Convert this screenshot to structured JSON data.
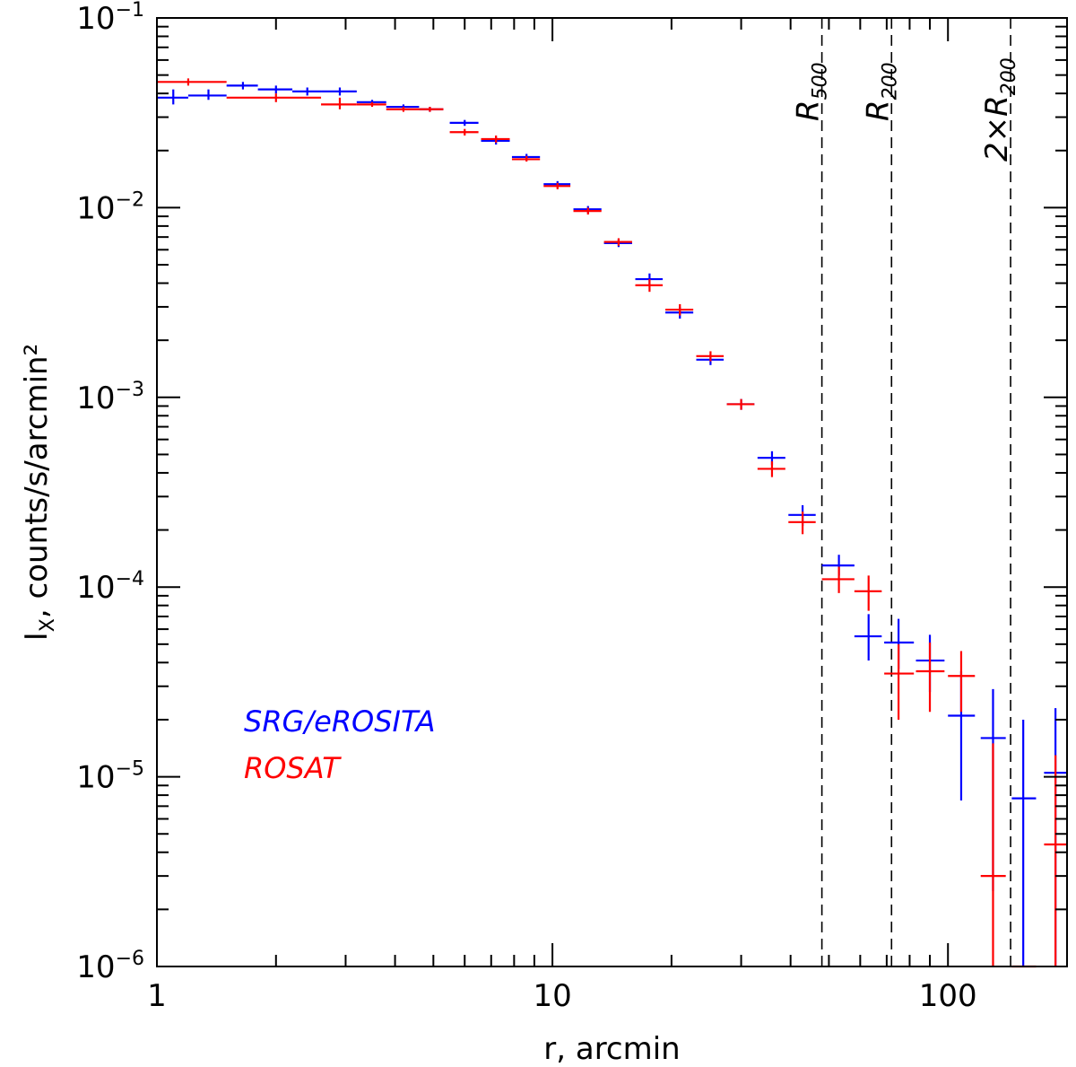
{
  "chart_data": {
    "type": "scatter",
    "xscale": "log",
    "yscale": "log",
    "xlim": [
      1,
      200
    ],
    "ylim": [
      1e-06,
      0.1
    ],
    "xlabel": "r, arcmin",
    "ylabel_main": "I",
    "ylabel_sub": "X",
    "ylabel_rest": ",  counts/s/arcmin²",
    "x_ticks": [
      {
        "value": 1,
        "label": "1"
      },
      {
        "value": 10,
        "label": "10"
      },
      {
        "value": 100,
        "label": "100"
      }
    ],
    "y_ticks": [
      {
        "value": 0.1,
        "base": "10",
        "exp": "−1"
      },
      {
        "value": 0.01,
        "base": "10",
        "exp": "−2"
      },
      {
        "value": 0.001,
        "base": "10",
        "exp": "−3"
      },
      {
        "value": 0.0001,
        "base": "10",
        "exp": "−4"
      },
      {
        "value": 1e-05,
        "base": "10",
        "exp": "−5"
      },
      {
        "value": 1e-06,
        "base": "10",
        "exp": "−6"
      }
    ],
    "ref_lines": [
      {
        "x": 48,
        "main": "R",
        "sub": "500"
      },
      {
        "x": 72,
        "main": "R",
        "sub": "200"
      },
      {
        "x": 144,
        "main": "2×R",
        "sub": "200"
      }
    ],
    "series": [
      {
        "name": "SRG/eROSITA",
        "color": "#0000ff",
        "points": [
          {
            "x": 1.1,
            "xlo": 1.0,
            "xhi": 1.2,
            "y": 0.038,
            "ylo": 0.035,
            "yhi": 0.042
          },
          {
            "x": 1.35,
            "xlo": 1.2,
            "xhi": 1.5,
            "y": 0.039,
            "ylo": 0.037,
            "yhi": 0.042
          },
          {
            "x": 1.65,
            "xlo": 1.5,
            "xhi": 1.8,
            "y": 0.044,
            "ylo": 0.042,
            "yhi": 0.046
          },
          {
            "x": 2.0,
            "xlo": 1.8,
            "xhi": 2.2,
            "y": 0.042,
            "ylo": 0.04,
            "yhi": 0.044
          },
          {
            "x": 2.4,
            "xlo": 2.2,
            "xhi": 2.6,
            "y": 0.041,
            "ylo": 0.039,
            "yhi": 0.043
          },
          {
            "x": 2.9,
            "xlo": 2.6,
            "xhi": 3.2,
            "y": 0.041,
            "ylo": 0.039,
            "yhi": 0.043
          },
          {
            "x": 3.5,
            "xlo": 3.2,
            "xhi": 3.8,
            "y": 0.036,
            "ylo": 0.035,
            "yhi": 0.037
          },
          {
            "x": 4.2,
            "xlo": 3.8,
            "xhi": 4.6,
            "y": 0.034,
            "ylo": 0.033,
            "yhi": 0.035
          },
          {
            "x": 4.9,
            "xlo": 4.6,
            "xhi": 5.3,
            "y": 0.033,
            "ylo": 0.032,
            "yhi": 0.034
          },
          {
            "x": 6.0,
            "xlo": 5.5,
            "xhi": 6.5,
            "y": 0.028,
            "ylo": 0.027,
            "yhi": 0.029
          },
          {
            "x": 7.2,
            "xlo": 6.6,
            "xhi": 7.8,
            "y": 0.0225,
            "ylo": 0.0215,
            "yhi": 0.0235
          },
          {
            "x": 8.6,
            "xlo": 7.9,
            "xhi": 9.3,
            "y": 0.0185,
            "ylo": 0.0178,
            "yhi": 0.0192
          },
          {
            "x": 10.3,
            "xlo": 9.5,
            "xhi": 11.1,
            "y": 0.0133,
            "ylo": 0.0128,
            "yhi": 0.0138
          },
          {
            "x": 12.3,
            "xlo": 11.3,
            "xhi": 13.3,
            "y": 0.0098,
            "ylo": 0.0094,
            "yhi": 0.0102
          },
          {
            "x": 14.7,
            "xlo": 13.5,
            "xhi": 15.9,
            "y": 0.0065,
            "ylo": 0.0062,
            "yhi": 0.0068
          },
          {
            "x": 17.6,
            "xlo": 16.2,
            "xhi": 19.0,
            "y": 0.0042,
            "ylo": 0.0039,
            "yhi": 0.0045
          },
          {
            "x": 21.0,
            "xlo": 19.3,
            "xhi": 22.7,
            "y": 0.0028,
            "ylo": 0.0026,
            "yhi": 0.003
          },
          {
            "x": 25.1,
            "xlo": 23.1,
            "xhi": 27.1,
            "y": 0.00158,
            "ylo": 0.00148,
            "yhi": 0.00168
          },
          {
            "x": 30.0,
            "xlo": 27.6,
            "xhi": 32.4,
            "y": 0.00092,
            "ylo": 0.00086,
            "yhi": 0.00098
          },
          {
            "x": 35.9,
            "xlo": 33.0,
            "xhi": 38.8,
            "y": 0.00048,
            "ylo": 0.00044,
            "yhi": 0.00052
          },
          {
            "x": 42.9,
            "xlo": 39.5,
            "xhi": 46.3,
            "y": 0.00024,
            "ylo": 0.00021,
            "yhi": 0.00027
          },
          {
            "x": 53.0,
            "xlo": 48.0,
            "xhi": 58.0,
            "y": 0.00013,
            "ylo": 0.000115,
            "yhi": 0.000148
          },
          {
            "x": 63.0,
            "xlo": 58.0,
            "xhi": 68.0,
            "y": 5.5e-05,
            "ylo": 4.1e-05,
            "yhi": 7.2e-05
          },
          {
            "x": 75.0,
            "xlo": 69.0,
            "xhi": 82.0,
            "y": 5.1e-05,
            "ylo": 3.7e-05,
            "yhi": 6.8e-05
          },
          {
            "x": 90.0,
            "xlo": 83.0,
            "xhi": 98.0,
            "y": 4.1e-05,
            "ylo": 2.8e-05,
            "yhi": 5.6e-05
          },
          {
            "x": 108.0,
            "xlo": 100.0,
            "xhi": 117.0,
            "y": 2.1e-05,
            "ylo": 7.5e-06,
            "yhi": 3.6e-05
          },
          {
            "x": 130.0,
            "xlo": 121.0,
            "xhi": 140.0,
            "y": 1.6e-05,
            "ylo": 2.5e-06,
            "yhi": 2.9e-05
          },
          {
            "x": 155.0,
            "xlo": 145.0,
            "xhi": 167.0,
            "y": 7.7e-06,
            "ylo": 1e-06,
            "yhi": 2e-05
          },
          {
            "x": 187.0,
            "xlo": 175.0,
            "xhi": 200.0,
            "y": 1.05e-05,
            "ylo": 1e-06,
            "yhi": 2.3e-05
          }
        ]
      },
      {
        "name": "ROSAT",
        "color": "#ff0000",
        "points": [
          {
            "x": 1.2,
            "xlo": 1.0,
            "xhi": 1.5,
            "y": 0.046,
            "ylo": 0.044,
            "yhi": 0.048
          },
          {
            "x": 2.0,
            "xlo": 1.5,
            "xhi": 2.6,
            "y": 0.038,
            "ylo": 0.036,
            "yhi": 0.04
          },
          {
            "x": 2.9,
            "xlo": 2.6,
            "xhi": 3.2,
            "y": 0.035,
            "ylo": 0.033,
            "yhi": 0.038
          },
          {
            "x": 3.5,
            "xlo": 3.2,
            "xhi": 3.8,
            "y": 0.035,
            "ylo": 0.034,
            "yhi": 0.036
          },
          {
            "x": 4.2,
            "xlo": 3.8,
            "xhi": 4.6,
            "y": 0.033,
            "ylo": 0.032,
            "yhi": 0.034
          },
          {
            "x": 4.9,
            "xlo": 4.6,
            "xhi": 5.3,
            "y": 0.033,
            "ylo": 0.032,
            "yhi": 0.034
          },
          {
            "x": 6.0,
            "xlo": 5.5,
            "xhi": 6.5,
            "y": 0.025,
            "ylo": 0.024,
            "yhi": 0.026
          },
          {
            "x": 7.2,
            "xlo": 6.6,
            "xhi": 7.8,
            "y": 0.023,
            "ylo": 0.022,
            "yhi": 0.024
          },
          {
            "x": 8.6,
            "xlo": 7.9,
            "xhi": 9.3,
            "y": 0.018,
            "ylo": 0.0175,
            "yhi": 0.0187
          },
          {
            "x": 10.3,
            "xlo": 9.5,
            "xhi": 11.1,
            "y": 0.013,
            "ylo": 0.0125,
            "yhi": 0.0135
          },
          {
            "x": 12.3,
            "xlo": 11.3,
            "xhi": 13.3,
            "y": 0.0096,
            "ylo": 0.0092,
            "yhi": 0.01
          },
          {
            "x": 14.7,
            "xlo": 13.5,
            "xhi": 15.9,
            "y": 0.0066,
            "ylo": 0.0063,
            "yhi": 0.0069
          },
          {
            "x": 17.6,
            "xlo": 16.2,
            "xhi": 19.0,
            "y": 0.0039,
            "ylo": 0.0036,
            "yhi": 0.0042
          },
          {
            "x": 21.0,
            "xlo": 19.3,
            "xhi": 22.7,
            "y": 0.0029,
            "ylo": 0.0027,
            "yhi": 0.0031
          },
          {
            "x": 25.1,
            "xlo": 23.1,
            "xhi": 27.1,
            "y": 0.00165,
            "ylo": 0.00155,
            "yhi": 0.00175
          },
          {
            "x": 30.0,
            "xlo": 27.6,
            "xhi": 32.4,
            "y": 0.00092,
            "ylo": 0.00086,
            "yhi": 0.00098
          },
          {
            "x": 35.9,
            "xlo": 33.0,
            "xhi": 38.8,
            "y": 0.00042,
            "ylo": 0.00038,
            "yhi": 0.00046
          },
          {
            "x": 42.9,
            "xlo": 39.5,
            "xhi": 46.3,
            "y": 0.00022,
            "ylo": 0.00019,
            "yhi": 0.00025
          },
          {
            "x": 53.0,
            "xlo": 48.0,
            "xhi": 58.0,
            "y": 0.00011,
            "ylo": 9.3e-05,
            "yhi": 0.000128
          },
          {
            "x": 63.0,
            "xlo": 58.0,
            "xhi": 68.0,
            "y": 9.5e-05,
            "ylo": 7.5e-05,
            "yhi": 0.000115
          },
          {
            "x": 75.0,
            "xlo": 69.0,
            "xhi": 82.0,
            "y": 3.5e-05,
            "ylo": 2e-05,
            "yhi": 5e-05
          },
          {
            "x": 90.0,
            "xlo": 83.0,
            "xhi": 98.0,
            "y": 3.6e-05,
            "ylo": 2.2e-05,
            "yhi": 5.1e-05
          },
          {
            "x": 108.0,
            "xlo": 100.0,
            "xhi": 117.0,
            "y": 3.4e-05,
            "ylo": 2.2e-05,
            "yhi": 4.6e-05
          },
          {
            "x": 130.0,
            "xlo": 121.0,
            "xhi": 140.0,
            "y": 3e-06,
            "ylo": 1e-06,
            "yhi": 1.5e-05
          },
          {
            "x": 155.0,
            "xlo": 145.0,
            "xhi": 167.0,
            "y": 1e-06,
            "ylo": 1e-06,
            "yhi": 1e-06
          },
          {
            "x": 187.0,
            "xlo": 175.0,
            "xhi": 200.0,
            "y": 4.4e-06,
            "ylo": 1e-06,
            "yhi": 1.3e-05
          }
        ]
      }
    ],
    "legend": [
      {
        "label": "SRG/eROSITA",
        "color": "#0000ff"
      },
      {
        "label": "ROSAT",
        "color": "#ff0000"
      }
    ],
    "legend_position": "lower-left"
  }
}
